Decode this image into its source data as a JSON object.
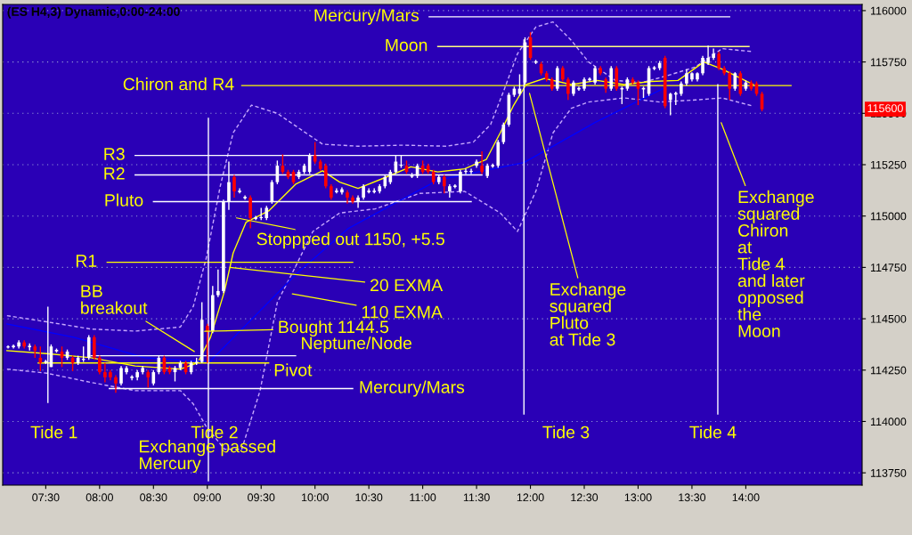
{
  "chart_data": {
    "type": "candlestick",
    "title": "(ES H4,3) Dynamic,0:00-24:00",
    "x": [
      7.15,
      7.2,
      7.25,
      7.3,
      7.35,
      7.4,
      7.45,
      7.5,
      7.55,
      7.6,
      7.65,
      7.7,
      7.75,
      7.8,
      7.85,
      7.9,
      7.95,
      8,
      8.05,
      8.1,
      8.15,
      8.2,
      8.25,
      8.3,
      8.35,
      8.4,
      8.45,
      8.5,
      8.55,
      8.6,
      8.65,
      8.7,
      8.75,
      8.8,
      8.85,
      8.9,
      8.95,
      9,
      9.05,
      9.1,
      9.15,
      9.2,
      9.25,
      9.3,
      9.35,
      9.4,
      9.45,
      9.5,
      9.55,
      9.6,
      9.65,
      9.7,
      9.75,
      9.8,
      9.85,
      9.9,
      9.95,
      10,
      10.05,
      10.1,
      10.15,
      10.2,
      10.25,
      10.3,
      10.35,
      10.4,
      10.45,
      10.5,
      10.55,
      10.6,
      10.65,
      10.7,
      10.75,
      10.8,
      10.85,
      10.9,
      10.95,
      11,
      11.05,
      11.1,
      11.15,
      11.2,
      11.25,
      11.3,
      11.35,
      11.4,
      11.45,
      11.5,
      11.55,
      11.6,
      11.65,
      11.7,
      11.75,
      11.8,
      11.85,
      11.9,
      11.95,
      12,
      12.05,
      12.1,
      12.15,
      12.2,
      12.25,
      12.3,
      12.35,
      12.4,
      12.45,
      12.5,
      12.55,
      12.6,
      12.65,
      12.7,
      12.75,
      12.8,
      12.85,
      12.9,
      12.95,
      13,
      13.05,
      13.1,
      13.15,
      13.2,
      13.25,
      13.3,
      13.35,
      13.4,
      13.45,
      13.5,
      13.55,
      13.6,
      13.65,
      13.7,
      13.75,
      13.8,
      13.85,
      13.9,
      13.95,
      14,
      14.05,
      14.1,
      14.15
    ],
    "ohlc": [
      [
        114360,
        114370,
        114355,
        114365
      ],
      [
        114365,
        114375,
        114355,
        114365
      ],
      [
        114365,
        114395,
        114355,
        114385
      ],
      [
        114385,
        114395,
        114355,
        114365
      ],
      [
        114365,
        114380,
        114345,
        114365
      ],
      [
        114365,
        114375,
        114310,
        114345
      ],
      [
        114310,
        114365,
        114245,
        114285
      ],
      [
        114290,
        114300,
        114280,
        114290
      ],
      [
        114265,
        114375,
        114265,
        114365
      ],
      [
        114345,
        114355,
        114335,
        114345
      ],
      [
        114340,
        114365,
        114265,
        114310
      ],
      [
        114310,
        114350,
        114300,
        114340
      ],
      [
        114310,
        114320,
        114245,
        114285
      ],
      [
        114285,
        114320,
        114275,
        114310
      ],
      [
        114300,
        114365,
        114290,
        114305
      ],
      [
        114310,
        114420,
        114300,
        114410
      ],
      [
        114410,
        114420,
        114300,
        114310
      ],
      [
        114310,
        114320,
        114230,
        114240
      ],
      [
        114240,
        114285,
        114190,
        114215
      ],
      [
        114240,
        114250,
        114200,
        114215
      ],
      [
        114215,
        114225,
        114140,
        114185
      ],
      [
        114185,
        114270,
        114175,
        114260
      ],
      [
        114240,
        114270,
        114230,
        114260
      ],
      [
        114215,
        114225,
        114200,
        114215
      ],
      [
        114215,
        114250,
        114200,
        114240
      ],
      [
        114240,
        114270,
        114230,
        114260
      ],
      [
        114240,
        114250,
        114165,
        114215
      ],
      [
        114185,
        114250,
        114175,
        114240
      ],
      [
        114240,
        114320,
        114230,
        114310
      ],
      [
        114310,
        114320,
        114230,
        114240
      ],
      [
        114260,
        114270,
        114230,
        114240
      ],
      [
        114240,
        114270,
        114195,
        114260
      ],
      [
        114260,
        114295,
        114250,
        114285
      ],
      [
        114285,
        114295,
        114230,
        114240
      ],
      [
        114240,
        114295,
        114230,
        114285
      ],
      [
        114285,
        114310,
        114275,
        114290
      ],
      [
        114290,
        114580,
        114285,
        114495
      ],
      [
        114465,
        114475,
        114285,
        114440
      ],
      [
        114440,
        114660,
        114430,
        114615
      ],
      [
        114615,
        114740,
        114605,
        114635
      ],
      [
        114635,
        115080,
        114625,
        115070
      ],
      [
        115070,
        115265,
        115030,
        115165
      ],
      [
        115190,
        115200,
        115090,
        115120
      ],
      [
        115120,
        115135,
        115110,
        115120
      ],
      [
        115090,
        115100,
        115080,
        115090
      ],
      [
        115090,
        115100,
        114940,
        114990
      ],
      [
        114990,
        115000,
        114980,
        114990
      ],
      [
        114990,
        115040,
        114980,
        114995
      ],
      [
        114990,
        115050,
        114980,
        115040
      ],
      [
        115070,
        115175,
        115060,
        115165
      ],
      [
        115165,
        115270,
        115155,
        115245
      ],
      [
        115245,
        115300,
        115205,
        115215
      ],
      [
        115215,
        115225,
        115180,
        115190
      ],
      [
        115215,
        115225,
        115155,
        115165
      ],
      [
        115190,
        115225,
        115180,
        115215
      ],
      [
        115215,
        115255,
        115205,
        115245
      ],
      [
        115215,
        115305,
        115205,
        115295
      ],
      [
        115295,
        115360,
        115255,
        115265
      ],
      [
        115265,
        115275,
        115220,
        115230
      ],
      [
        115245,
        115255,
        115135,
        115145
      ],
      [
        115145,
        115155,
        115080,
        115090
      ],
      [
        115120,
        115135,
        115110,
        115120
      ],
      [
        115115,
        115140,
        115105,
        115130
      ],
      [
        115115,
        115125,
        115060,
        115090
      ],
      [
        115090,
        115100,
        115060,
        115070
      ],
      [
        115070,
        115100,
        115040,
        115090
      ],
      [
        115090,
        115155,
        115080,
        115145
      ],
      [
        115120,
        115135,
        115110,
        115120
      ],
      [
        115120,
        115135,
        115110,
        115120
      ],
      [
        115120,
        115155,
        115110,
        115145
      ],
      [
        115145,
        115200,
        115135,
        115190
      ],
      [
        115165,
        115225,
        115155,
        115215
      ],
      [
        115215,
        115295,
        115205,
        115265
      ],
      [
        115245,
        115295,
        115235,
        115250
      ],
      [
        115245,
        115270,
        115205,
        115215
      ],
      [
        115195,
        115210,
        115185,
        115195
      ],
      [
        115195,
        115255,
        115185,
        115245
      ],
      [
        115245,
        115270,
        115205,
        115215
      ],
      [
        115245,
        115255,
        115205,
        115215
      ],
      [
        115215,
        115225,
        115155,
        115165
      ],
      [
        115165,
        115200,
        115155,
        115190
      ],
      [
        115190,
        115200,
        115110,
        115145
      ],
      [
        115120,
        115155,
        115090,
        115145
      ],
      [
        115145,
        115155,
        115135,
        115145
      ],
      [
        115120,
        115225,
        115110,
        115215
      ],
      [
        115215,
        115230,
        115205,
        115220
      ],
      [
        115215,
        115230,
        115205,
        115220
      ],
      [
        115245,
        115275,
        115235,
        115265
      ],
      [
        115245,
        115315,
        115205,
        115215
      ],
      [
        115195,
        115255,
        115185,
        115245
      ],
      [
        115245,
        115255,
        115235,
        115245
      ],
      [
        115245,
        115370,
        115235,
        115360
      ],
      [
        115360,
        115455,
        115350,
        115445
      ],
      [
        115445,
        115600,
        115435,
        115590
      ],
      [
        115590,
        115630,
        115580,
        115620
      ],
      [
        115595,
        115690,
        115585,
        115620
      ],
      [
        115650,
        115870,
        115640,
        115845
      ],
      [
        115870,
        115895,
        115760,
        115770
      ],
      [
        115750,
        115760,
        115740,
        115750
      ],
      [
        115740,
        115750,
        115685,
        115695
      ],
      [
        115695,
        115705,
        115655,
        115665
      ],
      [
        115665,
        115675,
        115610,
        115620
      ],
      [
        115620,
        115730,
        115610,
        115720
      ],
      [
        115720,
        115730,
        115655,
        115665
      ],
      [
        115665,
        115675,
        115565,
        115595
      ],
      [
        115595,
        115660,
        115585,
        115650
      ],
      [
        115620,
        115630,
        115610,
        115620
      ],
      [
        115620,
        115675,
        115610,
        115665
      ],
      [
        115665,
        115675,
        115655,
        115665
      ],
      [
        115650,
        115730,
        115640,
        115720
      ],
      [
        115720,
        115730,
        115685,
        115695
      ],
      [
        115665,
        115675,
        115600,
        115620
      ],
      [
        115620,
        115730,
        115610,
        115720
      ],
      [
        115720,
        115730,
        115610,
        115620
      ],
      [
        115620,
        115630,
        115545,
        115620
      ],
      [
        115620,
        115675,
        115610,
        115665
      ],
      [
        115665,
        115675,
        115640,
        115650
      ],
      [
        115650,
        115660,
        115540,
        115620
      ],
      [
        115620,
        115630,
        115575,
        115620
      ],
      [
        115595,
        115730,
        115585,
        115720
      ],
      [
        115720,
        115730,
        115710,
        115720
      ],
      [
        115720,
        115755,
        115710,
        115745
      ],
      [
        115770,
        115780,
        115525,
        115535
      ],
      [
        115565,
        115600,
        115490,
        115595
      ],
      [
        115595,
        115605,
        115540,
        115595
      ],
      [
        115595,
        115655,
        115585,
        115645
      ],
      [
        115645,
        115715,
        115635,
        115695
      ],
      [
        115665,
        115700,
        115655,
        115695
      ],
      [
        115665,
        115700,
        115655,
        115695
      ],
      [
        115695,
        115780,
        115685,
        115770
      ],
      [
        115745,
        115830,
        115735,
        115770
      ],
      [
        115770,
        115815,
        115760,
        115790
      ],
      [
        115790,
        115800,
        115710,
        115720
      ],
      [
        115720,
        115730,
        115685,
        115695
      ],
      [
        115695,
        115705,
        115565,
        115620
      ],
      [
        115620,
        115700,
        115610,
        115695
      ],
      [
        115695,
        115705,
        115585,
        115595
      ],
      [
        115620,
        115660,
        115610,
        115650
      ],
      [
        115650,
        115660,
        115610,
        115620
      ],
      [
        115645,
        115655,
        115585,
        115595
      ],
      [
        115595,
        115605,
        115510,
        115520
      ]
    ],
    "colors": [
      "#ffffff",
      "#ffffff",
      "#ffffff",
      "#ff0000",
      "#ffffff",
      "#ff0000",
      "#ff0000",
      "#ffffff",
      "#ffffff",
      "#ffffff",
      "#ff0000",
      "#ffffff",
      "#ff0000",
      "#ffffff",
      "#ffffff",
      "#ffffff",
      "#ff0000",
      "#ff0000",
      "#ff0000",
      "#ff0000",
      "#ff0000",
      "#ffffff",
      "#ffffff",
      "#ffffff",
      "#ffffff",
      "#ffffff",
      "#ff0000",
      "#ffffff",
      "#ffffff",
      "#ff0000",
      "#ff0000",
      "#ffffff",
      "#ffffff",
      "#ff0000",
      "#ffffff",
      "#ffffff",
      "#ffffff",
      "#ff0000",
      "#ffffff",
      "#ffffff",
      "#ffffff",
      "#ffffff",
      "#ff0000",
      "#ffffff",
      "#ffffff",
      "#ff0000",
      "#ffffff",
      "#ffffff",
      "#ffffff",
      "#ffffff",
      "#ffffff",
      "#ff0000",
      "#ff0000",
      "#ff0000",
      "#ffffff",
      "#ffffff",
      "#ffffff",
      "#ff0000",
      "#ff0000",
      "#ff0000",
      "#ff0000",
      "#ffffff",
      "#ffffff",
      "#ff0000",
      "#ff0000",
      "#ffffff",
      "#ffffff",
      "#ffffff",
      "#ffffff",
      "#ffffff",
      "#ffffff",
      "#ffffff",
      "#ffffff",
      "#ffffff",
      "#ff0000",
      "#ffffff",
      "#ffffff",
      "#ff0000",
      "#ff0000",
      "#ff0000",
      "#ffffff",
      "#ff0000",
      "#ffffff",
      "#ffffff",
      "#ffffff",
      "#ffffff",
      "#ffffff",
      "#ffffff",
      "#ff0000",
      "#ffffff",
      "#ffffff",
      "#ffffff",
      "#ffffff",
      "#ffffff",
      "#ffffff",
      "#ffffff",
      "#ffffff",
      "#ff0000",
      "#ffffff",
      "#ff0000",
      "#ff0000",
      "#ff0000",
      "#ffffff",
      "#ff0000",
      "#ff0000",
      "#ffffff",
      "#ffffff",
      "#ffffff",
      "#ffffff",
      "#ffffff",
      "#ff0000",
      "#ff0000",
      "#ffffff",
      "#ff0000",
      "#ffffff",
      "#ffffff",
      "#ff0000",
      "#ff0000",
      "#ffffff",
      "#ffffff",
      "#ffffff",
      "#ffffff",
      "#ff0000",
      "#ffffff",
      "#ffffff",
      "#ffffff",
      "#ffffff",
      "#ffffff",
      "#ffffff",
      "#ffffff",
      "#ffffff",
      "#ffffff",
      "#ff0000",
      "#ff0000",
      "#ff0000",
      "#ffffff",
      "#ff0000",
      "#ffffff",
      "#ff0000",
      "#ff0000",
      "#ff0000"
    ],
    "series": [
      {
        "type": "line",
        "color": "#c8a8ff",
        "line_style": "dashed",
        "x": [
          7.14,
          7.51,
          7.92,
          8.33,
          8.75,
          8.87,
          8.99,
          9.12,
          9.24,
          9.41,
          9.65,
          9.9,
          10.07,
          10.4,
          10.81,
          11.22,
          11.47,
          11.63,
          11.76,
          11.88,
          12.05,
          12.21,
          12.38,
          12.54,
          12.79,
          13.04,
          13.28,
          13.53,
          13.78,
          14.07
        ],
        "values": [
          114515,
          114485,
          114450,
          114440,
          114460,
          114560,
          114795,
          115145,
          115405,
          115540,
          115500,
          115410,
          115350,
          115340,
          115345,
          115340,
          115360,
          115445,
          115620,
          115790,
          115920,
          115945,
          115855,
          115750,
          115660,
          115650,
          115685,
          115725,
          115815,
          115800
        ]
      },
      {
        "type": "line",
        "color": "#c8a8ff",
        "line_style": "dashed",
        "x": [
          7.14,
          7.51,
          7.92,
          8.33,
          8.75,
          8.87,
          8.99,
          9.16,
          9.32,
          9.49,
          9.65,
          9.82,
          9.98,
          10.23,
          10.56,
          10.97,
          11.39,
          11.72,
          11.88,
          12.05,
          12.21,
          12.38,
          12.54,
          12.87,
          13.2,
          13.53,
          13.78,
          14.07
        ],
        "values": [
          114255,
          114235,
          114190,
          114150,
          114150,
          114085,
          113975,
          113865,
          113865,
          114150,
          114580,
          114755,
          114925,
          115015,
          115035,
          115110,
          115120,
          115015,
          114925,
          115120,
          115405,
          115525,
          115555,
          115575,
          115555,
          115565,
          115575,
          115535
        ]
      },
      {
        "type": "line",
        "color": "#ffff00",
        "line_style": "solid",
        "x": [
          7.14,
          7.51,
          7.92,
          8.33,
          8.75,
          8.91,
          9.03,
          9.16,
          9.24,
          9.36,
          9.57,
          9.82,
          10.07,
          10.23,
          10.4,
          10.64,
          10.89,
          11.14,
          11.39,
          11.59,
          11.72,
          11.84,
          11.96,
          12.13,
          12.38,
          12.62,
          12.87,
          13.12,
          13.37,
          13.61,
          13.78,
          14.07
        ],
        "values": [
          114345,
          114330,
          114310,
          114270,
          114255,
          114285,
          114410,
          114635,
          114820,
          114970,
          115025,
          115155,
          115220,
          115165,
          115135,
          115185,
          115240,
          115215,
          115230,
          115275,
          115405,
          115535,
          115640,
          115670,
          115640,
          115660,
          115640,
          115655,
          115660,
          115750,
          115715,
          115640
        ]
      },
      {
        "type": "line",
        "color": "#0000ff",
        "line_style": "solid",
        "x": [
          7.14,
          7.76,
          8.42,
          9.02,
          9.84,
          10.31,
          11.14,
          11.94,
          12.6,
          13.23
        ],
        "values": [
          114475,
          114410,
          114310,
          114290,
          114725,
          114940,
          115175,
          115260,
          115455,
          115620
        ]
      },
      {
        "type": "line",
        "name": "Mercury/Mars",
        "color": "#ffffff",
        "line_style": "solid",
        "x": [
          11.06,
          13.85
        ],
        "values": [
          115970,
          115970
        ]
      },
      {
        "type": "line",
        "name": "Moon",
        "color": "#ffff80",
        "line_style": "solid",
        "x": [
          11.14,
          14.03
        ],
        "values": [
          115825,
          115825
        ]
      },
      {
        "type": "line",
        "name": "Chiron and R4",
        "color": "#ffff00",
        "line_style": "solid",
        "x": [
          9.32,
          14.42
        ],
        "values": [
          115635,
          115635
        ]
      },
      {
        "type": "line",
        "name": "R3",
        "color": "#ffffff",
        "line_style": "solid",
        "x": [
          8.33,
          11.55
        ],
        "values": [
          115295,
          115295
        ]
      },
      {
        "type": "line",
        "name": "R2",
        "color": "#ffffff",
        "line_style": "solid",
        "x": [
          8.33,
          11.55
        ],
        "values": [
          115200,
          115200
        ]
      },
      {
        "type": "line",
        "name": "Pluto",
        "color": "#ffffff",
        "line_style": "solid",
        "x": [
          8.5,
          11.45
        ],
        "values": [
          115070,
          115070
        ]
      },
      {
        "type": "line",
        "name": "R1",
        "color": "#ffff00",
        "line_style": "solid",
        "x": [
          8.07,
          10.35
        ],
        "values": [
          114775,
          114775
        ]
      },
      {
        "type": "line",
        "name": "Neptune/Node",
        "color": "#ffffff",
        "line_style": "solid",
        "x": [
          7.92,
          9.82
        ],
        "values": [
          114320,
          114320
        ]
      },
      {
        "type": "line",
        "name": "Pivot",
        "color": "#ffff00",
        "line_style": "solid",
        "x": [
          7.43,
          9.57
        ],
        "values": [
          114285,
          114285
        ]
      },
      {
        "type": "line",
        "name": "Mercury/Mars",
        "color": "#ffffff",
        "line_style": "solid",
        "x": [
          8.09,
          10.35
        ],
        "values": [
          114160,
          114160
        ]
      }
    ],
    "xlim": [
      7.1,
      15.08
    ],
    "ylim": [
      113690,
      116030
    ],
    "xticks": [
      {
        "value": 7.5,
        "label": "07:30"
      },
      {
        "value": 8,
        "label": "08:00"
      },
      {
        "value": 8.5,
        "label": "08:30"
      },
      {
        "value": 9,
        "label": "09:00"
      },
      {
        "value": 9.5,
        "label": "09:30"
      },
      {
        "value": 10,
        "label": "10:00"
      },
      {
        "value": 10.5,
        "label": "10:30"
      },
      {
        "value": 11,
        "label": "11:00"
      },
      {
        "value": 11.5,
        "label": "11:30"
      },
      {
        "value": 12,
        "label": "12:00"
      },
      {
        "value": 12.5,
        "label": "12:30"
      },
      {
        "value": 13,
        "label": "13:00"
      },
      {
        "value": 13.5,
        "label": "13:30"
      },
      {
        "value": 14,
        "label": "14:00"
      }
    ],
    "yticks": [
      113750,
      114000,
      114250,
      114500,
      114750,
      115000,
      115250,
      115500,
      115750,
      116000
    ],
    "grid": "y",
    "ref_lines": [
      {
        "axis": "x",
        "value": 7.52,
        "label": "Tide 1",
        "color": "#ffffff"
      },
      {
        "axis": "x",
        "value": 9.01,
        "label": "Tide 2",
        "color": "#ffffff"
      },
      {
        "axis": "x",
        "value": 11.94,
        "label": "Tide 3",
        "color": "#ffffff"
      },
      {
        "axis": "x",
        "value": 13.74,
        "label": "Tide 4",
        "color": "#ffffff"
      }
    ],
    "annotations": [
      "BB\nbreakout",
      "Stoppped out 1150, +5.5",
      {
        "text": "20 EXMA",
        "x": 9.21,
        "y": 114750
      },
      "110 EXMA",
      "Bought 1144.5",
      "Exchange passed\nMercury",
      "Exchange\nsquared\nPluto\nat Tide 3",
      "Exchange\nsquared\nChiron\nat\nTide 4\nand later\nopposed\nthe\nMoon",
      "115600"
    ]
  }
}
